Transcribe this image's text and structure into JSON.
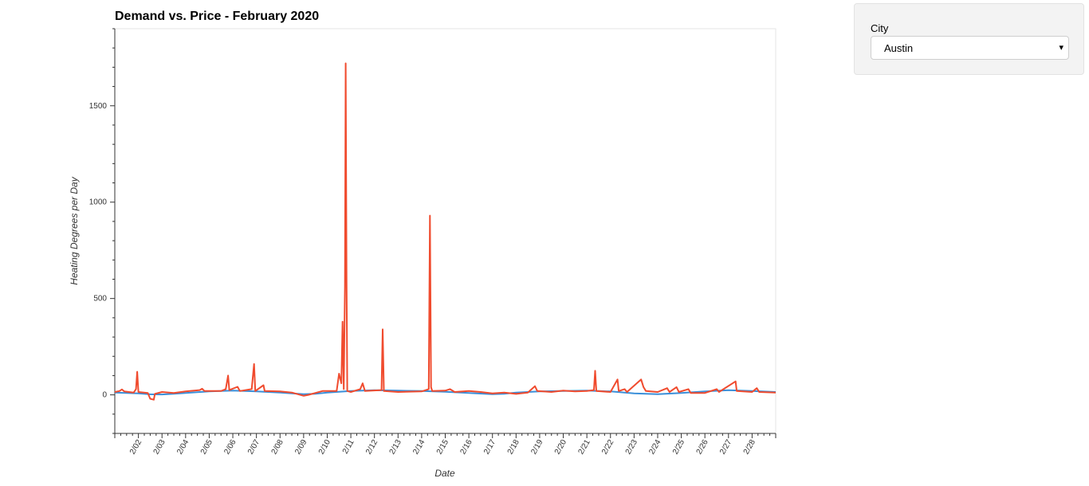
{
  "chart_data": {
    "type": "line",
    "title": "Demand vs. Price - February 2020",
    "xlabel": "Date",
    "ylabel": "Heating Degrees per Day",
    "x_tick_labels": [
      "2/02",
      "2/03",
      "2/04",
      "2/05",
      "2/06",
      "2/07",
      "2/08",
      "2/09",
      "2/10",
      "2/11",
      "2/12",
      "2/13",
      "2/14",
      "2/15",
      "2/16",
      "2/17",
      "2/18",
      "2/19",
      "2/20",
      "2/21",
      "2/22",
      "2/23",
      "2/24",
      "2/25",
      "2/26",
      "2/27",
      "2/28"
    ],
    "x_range_days": [
      1,
      29.0
    ],
    "ylim": [
      -200,
      1900
    ],
    "y_ticks": [
      0,
      500,
      1000,
      1500
    ],
    "grid": false,
    "series": [
      {
        "color": "#3a8fd9",
        "points": [
          [
            1.0,
            12
          ],
          [
            2.0,
            8
          ],
          [
            2.5,
            3
          ],
          [
            3.0,
            2
          ],
          [
            3.5,
            6
          ],
          [
            4.0,
            10
          ],
          [
            5.0,
            18
          ],
          [
            6.0,
            22
          ],
          [
            7.0,
            18
          ],
          [
            8.0,
            12
          ],
          [
            9.0,
            4
          ],
          [
            9.5,
            6
          ],
          [
            10.0,
            12
          ],
          [
            11.0,
            20
          ],
          [
            12.0,
            24
          ],
          [
            13.0,
            22
          ],
          [
            14.0,
            20
          ],
          [
            15.0,
            16
          ],
          [
            16.0,
            10
          ],
          [
            17.0,
            4
          ],
          [
            17.5,
            6
          ],
          [
            18.0,
            12
          ],
          [
            19.0,
            18
          ],
          [
            20.0,
            20
          ],
          [
            21.0,
            22
          ],
          [
            22.0,
            18
          ],
          [
            23.0,
            8
          ],
          [
            24.0,
            4
          ],
          [
            25.0,
            10
          ],
          [
            26.0,
            18
          ],
          [
            27.0,
            24
          ],
          [
            28.0,
            20
          ],
          [
            29.0,
            15
          ]
        ]
      },
      {
        "color": "#f04b2e",
        "points": [
          [
            1.0,
            15
          ],
          [
            1.2,
            20
          ],
          [
            1.3,
            28
          ],
          [
            1.4,
            18
          ],
          [
            1.8,
            12
          ],
          [
            1.9,
            30
          ],
          [
            1.95,
            120
          ],
          [
            2.0,
            15
          ],
          [
            2.4,
            10
          ],
          [
            2.5,
            -20
          ],
          [
            2.65,
            -25
          ],
          [
            2.7,
            5
          ],
          [
            3.0,
            15
          ],
          [
            3.5,
            10
          ],
          [
            4.0,
            18
          ],
          [
            4.6,
            25
          ],
          [
            4.7,
            32
          ],
          [
            4.8,
            20
          ],
          [
            5.5,
            20
          ],
          [
            5.7,
            30
          ],
          [
            5.8,
            100
          ],
          [
            5.85,
            25
          ],
          [
            6.2,
            42
          ],
          [
            6.3,
            20
          ],
          [
            6.8,
            30
          ],
          [
            6.9,
            160
          ],
          [
            6.95,
            20
          ],
          [
            7.3,
            50
          ],
          [
            7.35,
            20
          ],
          [
            8.0,
            18
          ],
          [
            8.5,
            12
          ],
          [
            9.0,
            -5
          ],
          [
            9.2,
            0
          ],
          [
            9.5,
            10
          ],
          [
            9.8,
            20
          ],
          [
            10.4,
            20
          ],
          [
            10.5,
            110
          ],
          [
            10.6,
            60
          ],
          [
            10.65,
            380
          ],
          [
            10.7,
            30
          ],
          [
            10.75,
            560
          ],
          [
            10.78,
            1720
          ],
          [
            10.82,
            600
          ],
          [
            10.85,
            20
          ],
          [
            11.0,
            15
          ],
          [
            11.4,
            30
          ],
          [
            11.5,
            60
          ],
          [
            11.6,
            20
          ],
          [
            12.3,
            25
          ],
          [
            12.35,
            340
          ],
          [
            12.4,
            20
          ],
          [
            13.0,
            15
          ],
          [
            14.0,
            18
          ],
          [
            14.3,
            30
          ],
          [
            14.35,
            930
          ],
          [
            14.4,
            40
          ],
          [
            14.45,
            20
          ],
          [
            15.0,
            22
          ],
          [
            15.2,
            30
          ],
          [
            15.4,
            15
          ],
          [
            16.0,
            20
          ],
          [
            16.5,
            15
          ],
          [
            17.0,
            8
          ],
          [
            17.5,
            12
          ],
          [
            18.0,
            5
          ],
          [
            18.5,
            12
          ],
          [
            18.8,
            45
          ],
          [
            18.9,
            20
          ],
          [
            19.5,
            15
          ],
          [
            20.0,
            22
          ],
          [
            20.5,
            18
          ],
          [
            21.0,
            20
          ],
          [
            21.3,
            25
          ],
          [
            21.35,
            125
          ],
          [
            21.4,
            20
          ],
          [
            22.0,
            15
          ],
          [
            22.3,
            80
          ],
          [
            22.35,
            20
          ],
          [
            22.6,
            30
          ],
          [
            22.7,
            15
          ],
          [
            23.3,
            80
          ],
          [
            23.4,
            40
          ],
          [
            23.5,
            20
          ],
          [
            24.0,
            15
          ],
          [
            24.4,
            35
          ],
          [
            24.5,
            15
          ],
          [
            24.8,
            40
          ],
          [
            24.9,
            15
          ],
          [
            25.3,
            30
          ],
          [
            25.4,
            10
          ],
          [
            26.0,
            10
          ],
          [
            26.5,
            30
          ],
          [
            26.6,
            15
          ],
          [
            27.3,
            70
          ],
          [
            27.35,
            20
          ],
          [
            28.0,
            15
          ],
          [
            28.2,
            35
          ],
          [
            28.3,
            15
          ],
          [
            29.0,
            12
          ]
        ]
      }
    ]
  },
  "controls": {
    "city_label": "City",
    "city_selected": "Austin",
    "caret": "▾"
  }
}
